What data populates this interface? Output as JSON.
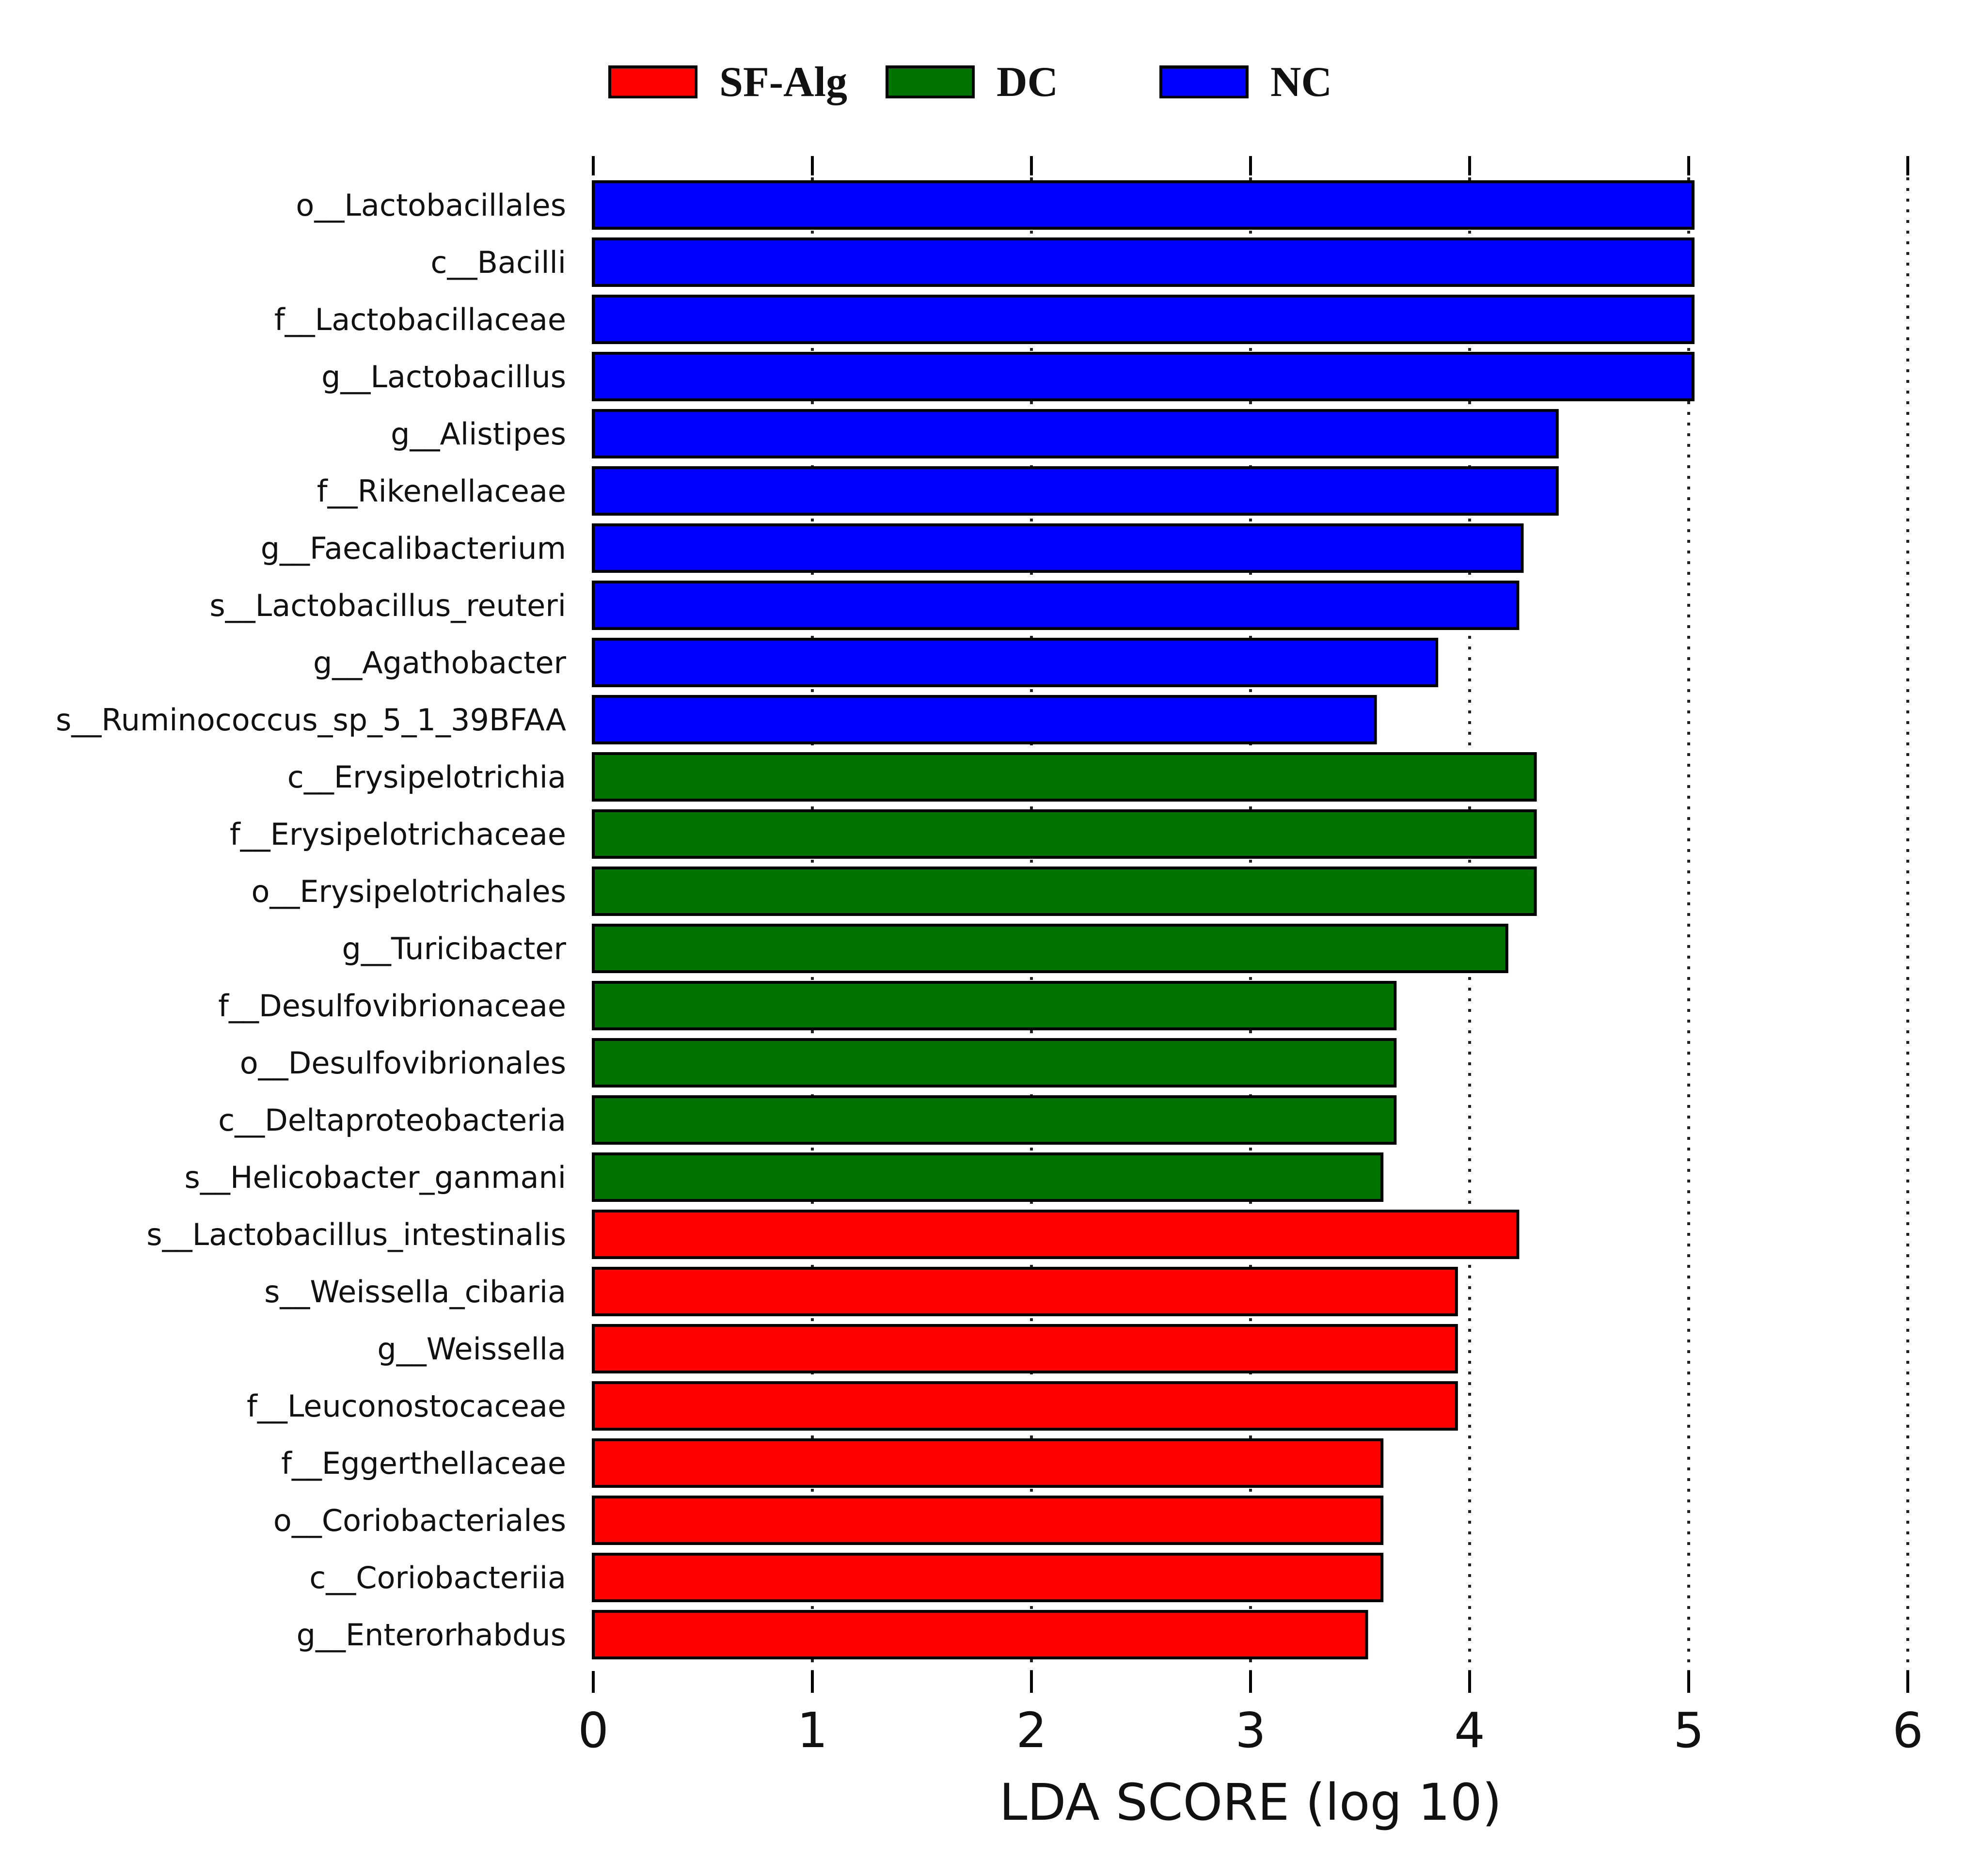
{
  "chart_data": {
    "type": "bar",
    "orientation": "horizontal",
    "xlabel": "LDA SCORE (log 10)",
    "xlim": [
      0,
      6
    ],
    "xticks": [
      "0",
      "1",
      "2",
      "3",
      "4",
      "5",
      "6"
    ],
    "grid": "vertical dotted",
    "legend_position": "top",
    "legend": [
      {
        "name": "SF-Alg",
        "color": "#ff0000"
      },
      {
        "name": "DC",
        "color": "#007300"
      },
      {
        "name": "NC",
        "color": "#0000ff"
      }
    ],
    "categories": [
      "o__Lactobacillales",
      "c__Bacilli",
      "f__Lactobacillaceae",
      "g__Lactobacillus",
      "g__Alistipes",
      "f__Rikenellaceae",
      "g__Faecalibacterium",
      "s__Lactobacillus_reuteri",
      "g__Agathobacter",
      "s__Ruminococcus_sp_5_1_39BFAA",
      "c__Erysipelotrichia",
      "f__Erysipelotrichaceae",
      "o__Erysipelotrichales",
      "g__Turicibacter",
      "f__Desulfovibrionaceae",
      "o__Desulfovibrionales",
      "c__Deltaproteobacteria",
      "s__Helicobacter_ganmani",
      "s__Lactobacillus_intestinalis",
      "s__Weissella_cibaria",
      "g__Weissella",
      "f__Leuconostocaceae",
      "f__Eggerthellaceae",
      "o__Coriobacteriales",
      "c__Coriobacteriia",
      "g__Enterorhabdus"
    ],
    "values": [
      5.02,
      5.02,
      5.02,
      5.02,
      4.4,
      4.4,
      4.24,
      4.22,
      3.85,
      3.57,
      4.3,
      4.3,
      4.3,
      4.17,
      3.66,
      3.66,
      3.66,
      3.6,
      4.22,
      3.94,
      3.94,
      3.94,
      3.6,
      3.6,
      3.6,
      3.53
    ],
    "groups": [
      "NC",
      "NC",
      "NC",
      "NC",
      "NC",
      "NC",
      "NC",
      "NC",
      "NC",
      "NC",
      "DC",
      "DC",
      "DC",
      "DC",
      "DC",
      "DC",
      "DC",
      "DC",
      "SF-Alg",
      "SF-Alg",
      "SF-Alg",
      "SF-Alg",
      "SF-Alg",
      "SF-Alg",
      "SF-Alg",
      "SF-Alg"
    ]
  }
}
